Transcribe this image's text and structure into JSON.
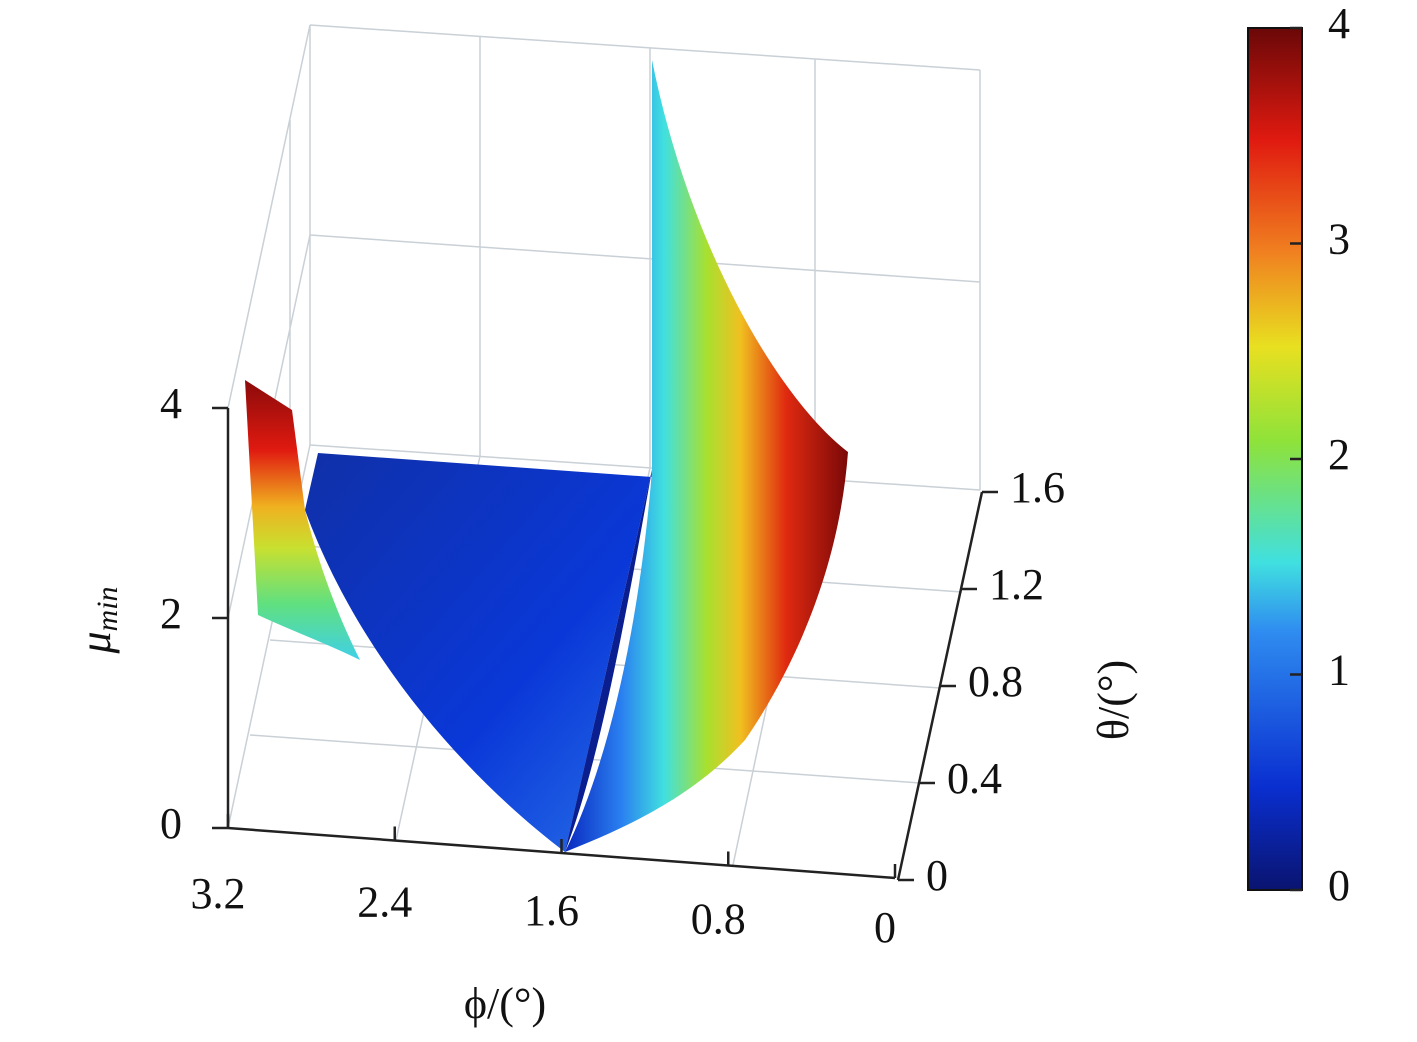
{
  "chart_data": {
    "type": "surface",
    "xlabel": "ϕ/(°)",
    "ylabel": "θ/(°)",
    "zlabel": "μ",
    "zlabel_sub": "min",
    "xlim": [
      3.2,
      0
    ],
    "xticks": [
      3.2,
      2.4,
      1.6,
      0.8,
      0
    ],
    "ylim": [
      0,
      1.6
    ],
    "yticks": [
      0,
      0.4,
      0.8,
      1.2,
      1.6
    ],
    "zlim": [
      0,
      4
    ],
    "zticks": [
      0,
      2,
      4
    ],
    "colorbar": {
      "lim": [
        0,
        4
      ],
      "ticks": [
        0,
        1,
        2,
        3,
        4
      ]
    },
    "colormap": "jet"
  }
}
